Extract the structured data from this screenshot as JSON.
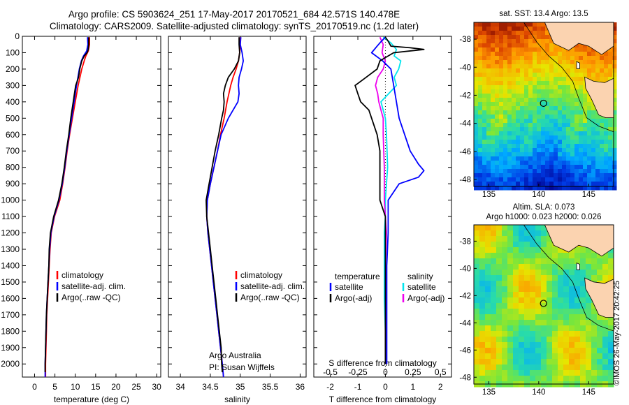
{
  "titles": {
    "line1": "Argo profile: CS 5903624_251 17-May-2017 20170521_684 42.571S 140.478E",
    "line2": "Climatology: CARS2009. Satellite-adjusted climatology: synTS_20170519.nc (1.2d later)"
  },
  "colors": {
    "climatology": "#ff0000",
    "satellite": "#0000ff",
    "argo": "#000000",
    "sal_satellite": "#00e5ee",
    "sal_argo": "#ee00ee"
  },
  "chart_data": [
    {
      "type": "line",
      "xlabel": "temperature (deg C)",
      "xlim": [
        -3,
        31
      ],
      "ylim": [
        2080,
        0
      ],
      "xticks": [
        0,
        5,
        10,
        15,
        20,
        25,
        30
      ],
      "yticks": [
        0,
        100,
        200,
        300,
        400,
        500,
        600,
        700,
        800,
        900,
        1000,
        1100,
        1200,
        1300,
        1400,
        1500,
        1600,
        1700,
        1800,
        1900,
        2000
      ],
      "legend": [
        "climatology",
        "satellite-adj. clim.",
        "Argo(..raw -QC)"
      ],
      "series": [
        {
          "key": "climatology",
          "depth": [
            5,
            50,
            90,
            120,
            150,
            200,
            300,
            400,
            500,
            600,
            700,
            800,
            900,
            1000,
            1100,
            1200,
            1300,
            1400,
            1500,
            1600,
            1700,
            1800,
            1900,
            2000,
            2080
          ],
          "values": [
            13.5,
            13.5,
            13.2,
            12.6,
            12.2,
            11.6,
            10.7,
            10.0,
            9.3,
            8.6,
            8.0,
            7.5,
            6.9,
            6.2,
            4.9,
            4.1,
            3.8,
            3.6,
            3.4,
            3.2,
            3.0,
            2.9,
            2.8,
            2.7,
            2.7
          ]
        },
        {
          "key": "satellite",
          "depth": [
            5,
            50,
            90,
            120,
            150,
            200,
            300,
            400,
            500,
            600,
            700,
            800,
            900,
            1000,
            1100,
            1200,
            1300,
            1400,
            1500,
            1600,
            1700,
            1800,
            1900,
            2000,
            2080
          ],
          "values": [
            13.0,
            13.1,
            12.8,
            12.0,
            11.5,
            11.0,
            10.3,
            9.7,
            9.1,
            8.5,
            7.9,
            7.4,
            6.8,
            6.0,
            4.8,
            4.0,
            3.7,
            3.5,
            3.3,
            3.1,
            2.9,
            2.8,
            2.7,
            2.6,
            2.6
          ]
        },
        {
          "key": "argo",
          "depth": [
            5,
            50,
            80,
            100,
            120,
            150,
            200,
            250,
            300,
            350,
            400,
            450,
            500,
            600,
            700,
            800,
            900,
            1000,
            1100,
            1200,
            1300,
            1400,
            1500,
            1600,
            1700,
            1800,
            1900,
            2000,
            2050
          ],
          "values": [
            13.3,
            13.3,
            13.2,
            12.9,
            12.2,
            11.6,
            11.1,
            10.8,
            10.1,
            9.8,
            9.5,
            9.2,
            8.9,
            8.4,
            7.8,
            7.3,
            6.7,
            5.9,
            4.7,
            3.9,
            3.6,
            3.5,
            3.3,
            3.1,
            2.9,
            2.8,
            2.7,
            2.6,
            2.6
          ]
        }
      ],
      "annotations": []
    },
    {
      "type": "line",
      "xlabel": "salinity",
      "xlim": [
        33.8,
        36.1
      ],
      "ylim": [
        2080,
        0
      ],
      "xticks": [
        34,
        34.5,
        35,
        35.5,
        36
      ],
      "legend": [
        "climatology",
        "satellite-adj. clim.",
        "Argo(..raw -QC)"
      ],
      "series": [
        {
          "key": "climatology",
          "depth": [
            5,
            50,
            100,
            150,
            200,
            250,
            300,
            400,
            500,
            600,
            700,
            800,
            900,
            1000,
            1100,
            1200,
            1300,
            1400,
            1500,
            1600,
            1700,
            1800,
            1900,
            2000,
            2080
          ],
          "values": [
            35.0,
            35.0,
            34.99,
            34.97,
            34.93,
            34.88,
            34.84,
            34.78,
            34.73,
            34.67,
            34.62,
            34.56,
            34.5,
            34.45,
            34.44,
            34.46,
            34.49,
            34.52,
            34.55,
            34.58,
            34.61,
            34.64,
            34.67,
            34.7,
            34.72
          ]
        },
        {
          "key": "satellite",
          "depth": [
            5,
            50,
            100,
            150,
            200,
            250,
            300,
            350,
            400,
            500,
            600,
            700,
            800,
            900,
            1000,
            1100,
            1200,
            1300,
            1400,
            1500,
            1600,
            1700,
            1800,
            1900,
            2000,
            2080
          ],
          "values": [
            35.01,
            35.0,
            35.03,
            35.05,
            35.02,
            34.98,
            34.97,
            34.98,
            34.96,
            34.8,
            34.68,
            34.62,
            34.56,
            34.5,
            34.45,
            34.44,
            34.46,
            34.49,
            34.52,
            34.55,
            34.58,
            34.61,
            34.64,
            34.67,
            34.7,
            34.72
          ]
        },
        {
          "key": "argo",
          "depth": [
            5,
            50,
            100,
            150,
            200,
            250,
            300,
            350,
            400,
            450,
            500,
            600,
            700,
            800,
            900,
            1000,
            1100,
            1200,
            1300,
            1400,
            1500,
            1600,
            1700,
            1800,
            1900,
            2000,
            2050
          ],
          "values": [
            34.98,
            34.98,
            34.99,
            34.97,
            34.9,
            34.8,
            34.75,
            34.72,
            34.73,
            34.72,
            34.69,
            34.64,
            34.58,
            34.53,
            34.48,
            34.43,
            34.44,
            34.47,
            34.5,
            34.53,
            34.56,
            34.59,
            34.62,
            34.65,
            34.68,
            34.69,
            34.7
          ]
        }
      ],
      "annotations": [
        "Argo Australia",
        "PI: Susan Wijffels"
      ]
    },
    {
      "type": "line",
      "xlabel": "T difference from climatology",
      "xlabel2": "S difference from climatology",
      "xlim": [
        -2.6,
        2.4
      ],
      "ylim": [
        2080,
        0
      ],
      "xticks": [
        -2,
        -1,
        0,
        1,
        2
      ],
      "xticks_s": [
        {
          "v": -0.5,
          "label": "-0.5"
        },
        {
          "v": -0.25,
          "label": "-0.25"
        },
        {
          "v": 0,
          "label": "0"
        },
        {
          "v": 0.25,
          "label": "0.25"
        },
        {
          "v": 0.5,
          "label": "0.5"
        }
      ],
      "legend": {
        "temperature": "temperature",
        "salinity": "salinity",
        "t_sat": "satellite",
        "t_argo": "Argo(-adj)",
        "s_sat": "satellite",
        "s_argo": "Argo(-adj)"
      },
      "series": [
        {
          "key": "t_satellite",
          "depth": [
            5,
            40,
            60,
            100,
            150,
            200,
            300,
            400,
            500,
            600,
            700,
            780,
            820,
            860,
            900,
            1000,
            1100,
            1200,
            1400,
            1600,
            1800,
            2000
          ],
          "values": [
            0.0,
            -0.2,
            -0.3,
            -0.5,
            -0.1,
            0.2,
            0.3,
            0.4,
            0.5,
            0.7,
            0.9,
            1.2,
            1.4,
            1.2,
            0.5,
            0.1,
            0.1,
            0.1,
            0.05,
            0.05,
            0.05,
            0.05
          ]
        },
        {
          "key": "t_argo",
          "depth": [
            5,
            30,
            60,
            70,
            80,
            100,
            130,
            150,
            200,
            250,
            300,
            350,
            400,
            450,
            500,
            600,
            700,
            800,
            900,
            1000,
            1100,
            1200,
            1300,
            1400,
            1600,
            1800,
            2000
          ],
          "values": [
            0.0,
            0.1,
            0.2,
            0.9,
            1.4,
            0.3,
            0.0,
            -0.2,
            -0.3,
            -0.7,
            -1.1,
            -1.0,
            -0.9,
            -0.6,
            -0.5,
            -0.3,
            -0.2,
            -0.2,
            -0.2,
            -0.2,
            0.0,
            0.0,
            0.0,
            0.0,
            0.0,
            0.0,
            0.0
          ]
        },
        {
          "key": "s_satellite",
          "depth": [
            5,
            40,
            80,
            120,
            150,
            200,
            250,
            300,
            400,
            500,
            600,
            800,
            1000,
            1100,
            1200,
            1400,
            1600,
            1800,
            2000
          ],
          "values": [
            -0.02,
            0.05,
            0.1,
            0.08,
            0.14,
            0.12,
            0.08,
            0.1,
            -0.04,
            0.0,
            0.01,
            0.02,
            0.0,
            0.0,
            -0.01,
            -0.01,
            -0.01,
            0.0,
            0.0
          ]
        },
        {
          "key": "s_argo",
          "depth": [
            5,
            50,
            100,
            150,
            200,
            250,
            300,
            350,
            400,
            450,
            500,
            600,
            800,
            1000,
            1100,
            1200,
            1400,
            1600,
            1800,
            2000
          ],
          "values": [
            -0.05,
            -0.02,
            -0.03,
            0.0,
            -0.02,
            -0.07,
            -0.09,
            -0.07,
            -0.06,
            -0.04,
            -0.02,
            -0.02,
            -0.01,
            -0.01,
            0.0,
            0.01,
            0.0,
            0.0,
            0.0,
            0.0
          ]
        }
      ],
      "annotations": []
    }
  ],
  "maps": [
    {
      "title": "sat. SST: 13.4 Argo: 13.5",
      "xticks": [
        "135",
        "140",
        "145"
      ],
      "yticks": [
        "-38",
        "-40",
        "-42",
        "-44",
        "-46",
        "-48"
      ],
      "kind": "sst"
    },
    {
      "title": "Altim. SLA: 0.073",
      "title2": "Argo h1000: 0.023 h2000: 0.026",
      "xticks": [
        "135",
        "140",
        "145"
      ],
      "yticks": [
        "-38",
        "-40",
        "-42",
        "-44",
        "-46",
        "-48"
      ],
      "kind": "sla"
    }
  ],
  "copyright": "©IMOS 26-May-2017 20:42:25"
}
